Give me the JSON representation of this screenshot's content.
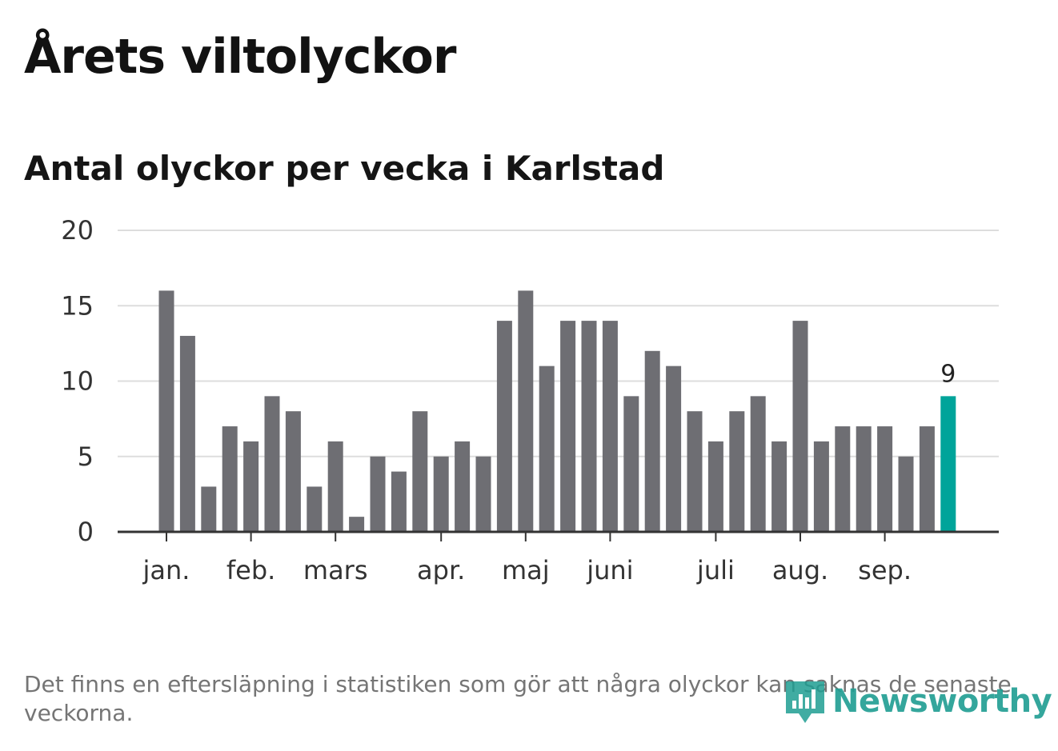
{
  "header": {
    "title": "Årets viltolyckor",
    "subtitle": "Antal olyckor per vecka i Karlstad"
  },
  "chart_data": {
    "type": "bar",
    "title": "Årets viltolyckor",
    "subtitle": "Antal olyckor per vecka i Karlstad",
    "xlabel": "",
    "ylabel": "",
    "ylim": [
      0,
      20
    ],
    "yticks": [
      0,
      5,
      10,
      15,
      20
    ],
    "grid": true,
    "values": [
      16,
      13,
      3,
      7,
      6,
      9,
      8,
      3,
      6,
      1,
      5,
      4,
      8,
      5,
      6,
      5,
      14,
      16,
      11,
      14,
      14,
      14,
      9,
      12,
      11,
      8,
      6,
      8,
      9,
      6,
      14,
      6,
      7,
      7,
      7,
      5,
      7,
      9
    ],
    "month_labels": [
      {
        "label": "jan.",
        "week": 1
      },
      {
        "label": "feb.",
        "week": 5
      },
      {
        "label": "mars",
        "week": 9
      },
      {
        "label": "apr.",
        "week": 14
      },
      {
        "label": "maj",
        "week": 18
      },
      {
        "label": "juni",
        "week": 22
      },
      {
        "label": "juli",
        "week": 27
      },
      {
        "label": "aug.",
        "week": 31
      },
      {
        "label": "sep.",
        "week": 35
      }
    ],
    "highlight": {
      "week": 38,
      "label": "9"
    },
    "colors": {
      "bar": "#6e6e73",
      "highlight": "#00a49a",
      "grid": "#dddddd",
      "axis": "#333333"
    }
  },
  "footnote": "Det finns en eftersläpning i statistiken som gör att några olyckor kan saknas de senaste veckorna.",
  "brand": {
    "name": "Newsworthy",
    "icon": "newsworthy-logo-icon",
    "color": "#1f9d92"
  }
}
